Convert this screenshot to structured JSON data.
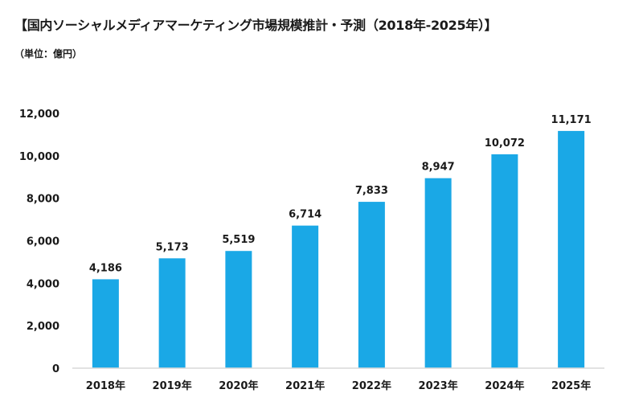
{
  "chart_data": {
    "type": "bar",
    "title": "【国内ソーシャルメディアマーケティング市場規模推計・予測（2018年-2025年）】",
    "unit_label": "（単位：億円）",
    "categories": [
      "2018年",
      "2019年",
      "2020年",
      "2021年",
      "2022年",
      "2023年",
      "2024年",
      "2025年"
    ],
    "values": [
      4186,
      5173,
      5519,
      6714,
      7833,
      8947,
      10072,
      11171
    ],
    "data_labels": [
      "4,186",
      "5,173",
      "5,519",
      "6,714",
      "7,833",
      "8,947",
      "10,072",
      "11,171"
    ],
    "ylim": [
      0,
      12000
    ],
    "y_ticks": [
      0,
      2000,
      4000,
      6000,
      8000,
      10000,
      12000
    ],
    "y_tick_labels": [
      "0",
      "2,000",
      "4,000",
      "6,000",
      "8,000",
      "10,000",
      "12,000"
    ],
    "grid": false,
    "legend": "none",
    "bar_color": "#1aa8e6",
    "axis_color": "#d9d9d9"
  }
}
